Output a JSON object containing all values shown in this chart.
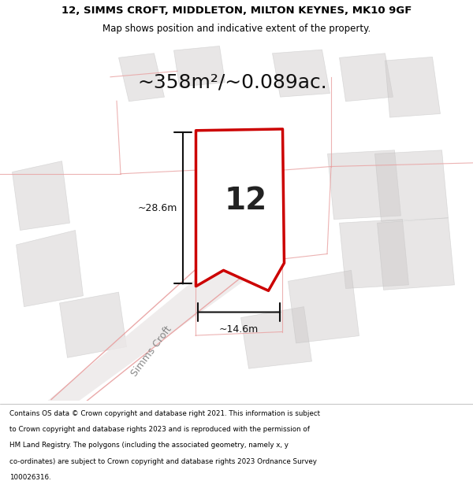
{
  "title_line1": "12, SIMMS CROFT, MIDDLETON, MILTON KEYNES, MK10 9GF",
  "title_line2": "Map shows position and indicative extent of the property.",
  "area_text": "~358m²/~0.089ac.",
  "plot_number": "12",
  "dim_width": "~14.6m",
  "dim_height": "~28.6m",
  "street_label": "Simms Croft",
  "footer_lines": [
    "Contains OS data © Crown copyright and database right 2021. This information is subject",
    "to Crown copyright and database rights 2023 and is reproduced with the permission of",
    "HM Land Registry. The polygons (including the associated geometry, namely x, y",
    "co-ordinates) are subject to Crown copyright and database rights 2023 Ordnance Survey",
    "100026316."
  ],
  "map_bg": "#f5f0f0",
  "plot_fill": "#ffffff",
  "plot_edge": "#cc0000",
  "dim_line_color": "#111111",
  "title_bg": "#ffffff",
  "footer_bg": "#ffffff",
  "gray_block_color": "#ccc8c8",
  "light_red_line": "#e8a0a0"
}
